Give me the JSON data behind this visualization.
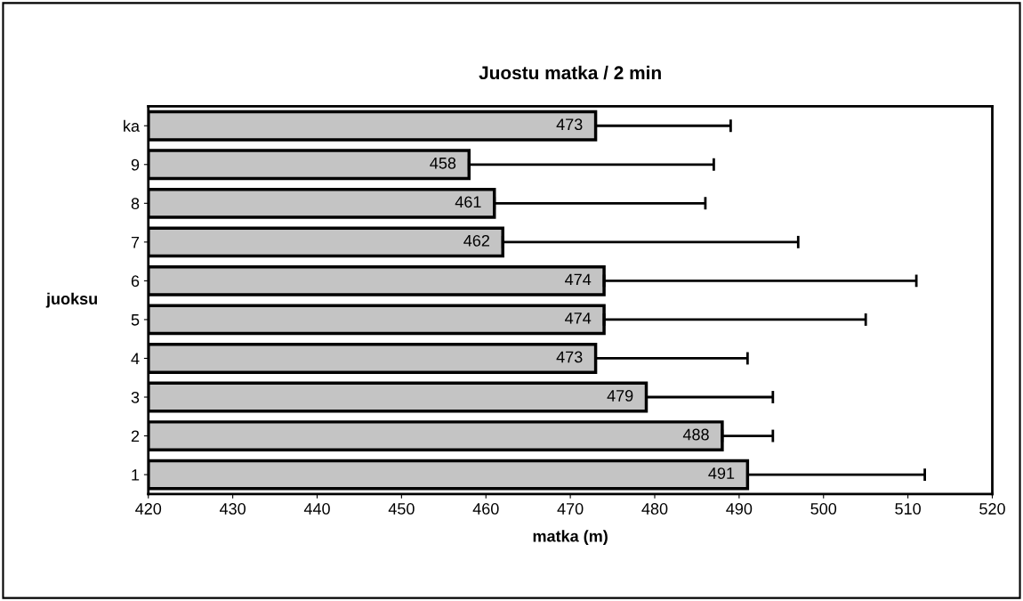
{
  "chart_data": {
    "type": "bar",
    "orientation": "horizontal",
    "title": "Juostu matka / 2 min",
    "xlabel": "matka (m)",
    "ylabel": "juoksu",
    "categories": [
      "ka",
      "9",
      "8",
      "7",
      "6",
      "5",
      "4",
      "3",
      "2",
      "1"
    ],
    "values": [
      473,
      458,
      461,
      462,
      474,
      474,
      473,
      479,
      488,
      491
    ],
    "errors": [
      [
        473,
        489
      ],
      [
        458,
        487
      ],
      [
        461,
        486
      ],
      [
        462,
        497
      ],
      [
        474,
        511
      ],
      [
        474,
        505
      ],
      [
        473,
        491
      ],
      [
        479,
        494
      ],
      [
        488,
        494
      ],
      [
        491,
        512
      ]
    ],
    "color": "#c4c4c4",
    "data_labels": true,
    "grid": false,
    "legend": false,
    "xlim": [
      420,
      520
    ],
    "xticks": [
      420,
      430,
      440,
      450,
      460,
      470,
      480,
      490,
      500,
      510,
      520
    ]
  }
}
